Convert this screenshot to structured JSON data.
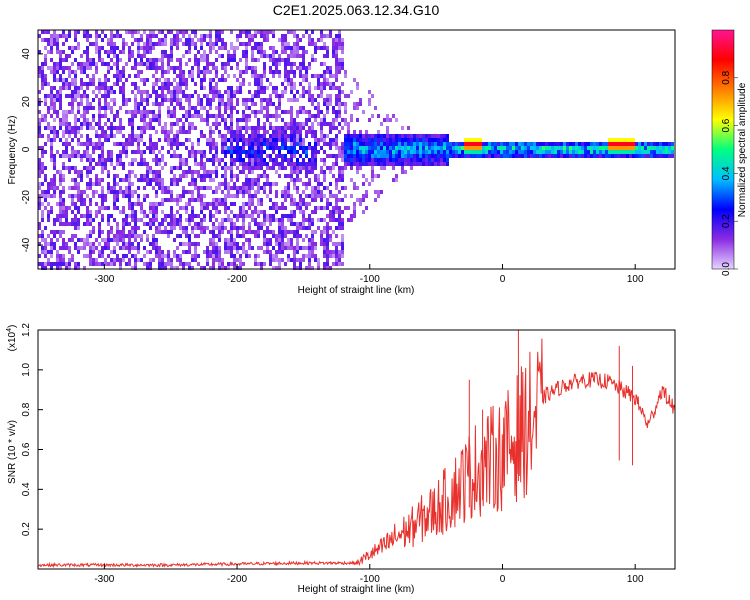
{
  "title": "C2E1.2025.063.12.34.G10",
  "chart_data": [
    {
      "type": "heatmap",
      "xlabel": "Height of straight line (km)",
      "ylabel": "Frequency (Hz)",
      "xlim": [
        -350,
        130
      ],
      "ylim": [
        -50,
        50
      ],
      "x_ticks": [
        "-300",
        "-200",
        "-100",
        "0",
        "100"
      ],
      "y_ticks": [
        "-40",
        "-20",
        "0",
        "20",
        "40"
      ],
      "colorbar": {
        "label": "Normalized spectral amplitude",
        "range": [
          0,
          1
        ],
        "ticks": [
          "0.0",
          "0.2",
          "0.4",
          "0.6",
          "0.8"
        ],
        "colormap": [
          "#e6d4ff",
          "#8a2be2",
          "#0000ff",
          "#00bfff",
          "#00ff7f",
          "#ffff00",
          "#ff7f00",
          "#ff0000",
          "#ff1493"
        ]
      },
      "features": [
        {
          "x_range": [
            -350,
            -120
          ],
          "description_level": "broadband noise",
          "amplitude": 0.12
        },
        {
          "x_range": [
            -210,
            -140
          ],
          "frequency_center": 0,
          "amplitude": 0.3
        },
        {
          "x_range": [
            -120,
            -40
          ],
          "frequency_center": 0,
          "amplitude": 0.4
        },
        {
          "x_range": [
            -40,
            130
          ],
          "frequency_center": 0,
          "amplitude": 0.5
        },
        {
          "x_range": [
            -30,
            -15
          ],
          "frequency_center": 2,
          "amplitude": 0.95
        },
        {
          "x_range": [
            80,
            100
          ],
          "frequency_center": 2,
          "amplitude": 0.95
        }
      ]
    },
    {
      "type": "line",
      "xlabel": "Height of straight line (km)",
      "ylabel": "SNR (10 * v/v)",
      "y_multiplier": "(x10",
      "y_multiplier_exp": "4",
      "y_multiplier_close": ")",
      "xlim": [
        -350,
        130
      ],
      "ylim": [
        0,
        1.2
      ],
      "x_ticks": [
        "-300",
        "-200",
        "-100",
        "0",
        "100"
      ],
      "y_ticks": [
        "0.2",
        "0.4",
        "0.6",
        "0.8",
        "1.0",
        "1.2"
      ],
      "series": [
        {
          "color": "#e8302c",
          "x": [
            -350,
            -300,
            -250,
            -200,
            -150,
            -110,
            -100,
            -90,
            -80,
            -70,
            -60,
            -50,
            -40,
            -30,
            -20,
            -10,
            0,
            10,
            20,
            30,
            40,
            50,
            60,
            70,
            80,
            90,
            100,
            110,
            120,
            130
          ],
          "y": [
            0.02,
            0.02,
            0.02,
            0.025,
            0.03,
            0.03,
            0.08,
            0.12,
            0.18,
            0.22,
            0.28,
            0.33,
            0.4,
            0.48,
            0.55,
            0.6,
            0.63,
            0.72,
            0.8,
            0.86,
            0.9,
            0.93,
            0.95,
            0.95,
            0.94,
            0.9,
            0.86,
            0.72,
            0.9,
            0.8
          ],
          "spikes": [
            {
              "x": -25,
              "y": 0.95
            },
            {
              "x": -15,
              "y": 0.8
            },
            {
              "x": 12,
              "y": 1.2
            },
            {
              "x": 88,
              "y": 1.12
            },
            {
              "x": 98,
              "y": 1.02
            }
          ]
        }
      ]
    }
  ]
}
